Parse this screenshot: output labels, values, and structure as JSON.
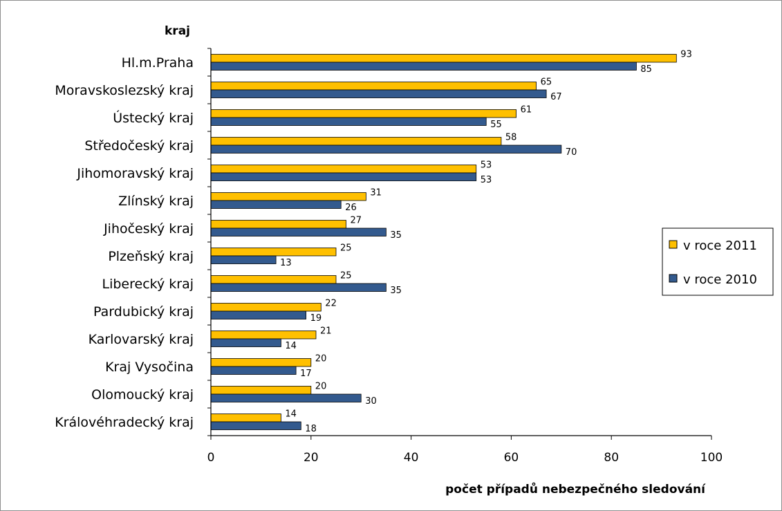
{
  "chart_data": {
    "type": "bar",
    "orientation": "horizontal",
    "categories": [
      "Hl.m.Praha",
      "Moravskoslezský kraj",
      "Ústecký kraj",
      "Středočeský kraj",
      "Jihomoravský kraj",
      "Zlínský kraj",
      "Jihočeský kraj",
      "Plzeňský kraj",
      "Liberecký kraj",
      "Pardubický kraj",
      "Karlovarský kraj",
      "Kraj Vysočina",
      "Olomoucký kraj",
      "Královéhradecký kraj"
    ],
    "series": [
      {
        "name": "v roce 2011",
        "color": "#FFC000",
        "values": [
          93,
          65,
          61,
          58,
          53,
          31,
          27,
          25,
          25,
          22,
          21,
          20,
          20,
          14
        ]
      },
      {
        "name": "v roce 2010",
        "color": "#335A8E",
        "values": [
          85,
          67,
          55,
          70,
          53,
          26,
          35,
          13,
          35,
          19,
          14,
          17,
          30,
          18
        ]
      }
    ],
    "xlim": [
      0,
      100
    ],
    "xticks": [
      "0",
      "20",
      "40",
      "60",
      "80",
      "100"
    ],
    "xlabel": "počet případů nebezpečného sledování",
    "ylabel": "kraj",
    "legend_position": "right",
    "grid": false
  }
}
